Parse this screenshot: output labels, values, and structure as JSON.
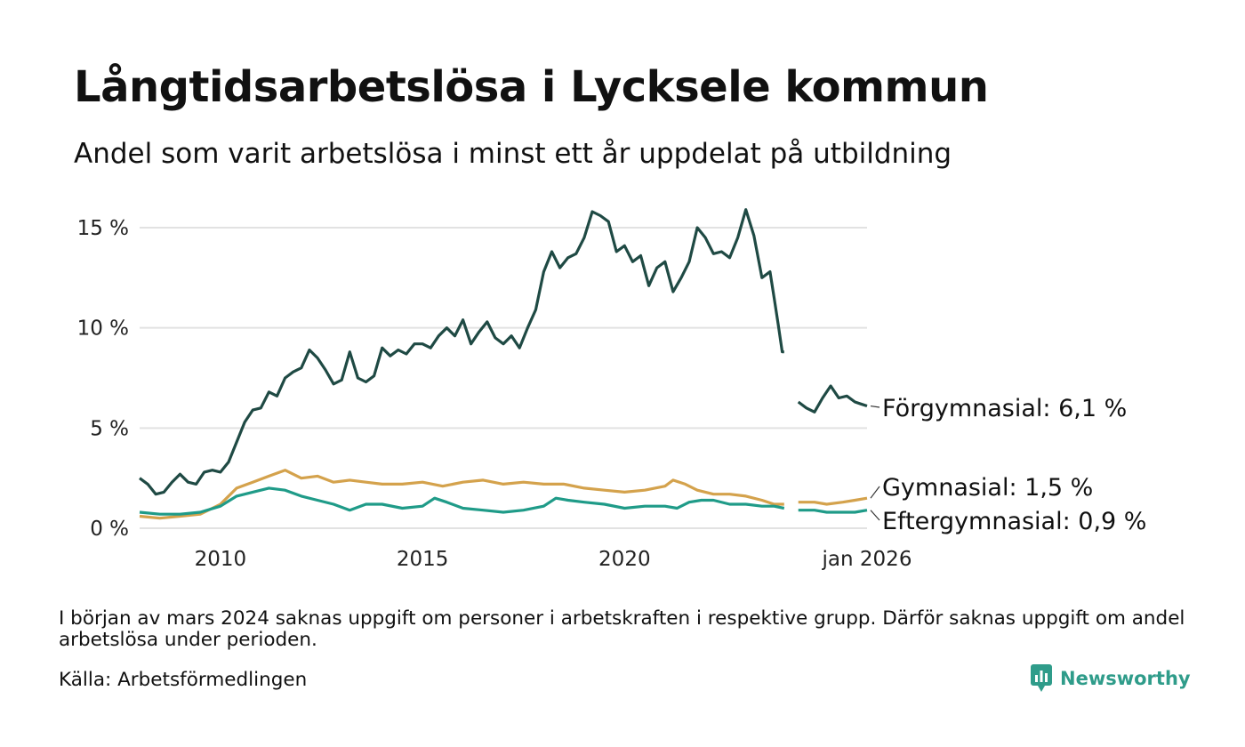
{
  "title": "Långtidsarbetslösa i Lycksele kommun",
  "subtitle": "Andel som varit arbetslösa i minst ett år uppdelat på utbildning",
  "footnote": "I början av mars 2024 saknas uppgift om personer i arbetskraften i respektive grupp. Därför saknas uppgift om andel arbetslösa under perioden.",
  "source": "Källa: Arbetsförmedlingen",
  "brand": "Newsworthy",
  "colors": {
    "forgymnasial": "#1f4a44",
    "gymnasial": "#d4a24c",
    "eftergymnasial": "#1f9b88",
    "grid": "#e2e2e2",
    "brand": "#2f9c8a"
  },
  "chart_data": {
    "type": "line",
    "x_range": [
      2008.0,
      2026.0
    ],
    "ylim": [
      0,
      16
    ],
    "y_ticks": [
      0,
      5,
      10,
      15
    ],
    "y_tick_labels": [
      "0 %",
      "5 %",
      "10 %",
      "15 %"
    ],
    "x_ticks": [
      2010,
      2015,
      2020,
      2026
    ],
    "x_tick_labels": [
      "2010",
      "2015",
      "2020",
      "jan 2026"
    ],
    "gap": [
      2023.95,
      2024.3
    ],
    "series": [
      {
        "name": "Förgymnasial",
        "end_label": "Förgymnasial: 6,1 %",
        "color_key": "forgymnasial",
        "points": [
          [
            2008.0,
            2.5
          ],
          [
            2008.2,
            2.2
          ],
          [
            2008.4,
            1.7
          ],
          [
            2008.6,
            1.8
          ],
          [
            2008.8,
            2.3
          ],
          [
            2009.0,
            2.7
          ],
          [
            2009.2,
            2.3
          ],
          [
            2009.4,
            2.2
          ],
          [
            2009.6,
            2.8
          ],
          [
            2009.8,
            2.9
          ],
          [
            2010.0,
            2.8
          ],
          [
            2010.2,
            3.3
          ],
          [
            2010.4,
            4.3
          ],
          [
            2010.6,
            5.3
          ],
          [
            2010.8,
            5.9
          ],
          [
            2011.0,
            6.0
          ],
          [
            2011.2,
            6.8
          ],
          [
            2011.4,
            6.6
          ],
          [
            2011.6,
            7.5
          ],
          [
            2011.8,
            7.8
          ],
          [
            2012.0,
            8.0
          ],
          [
            2012.2,
            8.9
          ],
          [
            2012.4,
            8.5
          ],
          [
            2012.6,
            7.9
          ],
          [
            2012.8,
            7.2
          ],
          [
            2013.0,
            7.4
          ],
          [
            2013.2,
            8.8
          ],
          [
            2013.4,
            7.5
          ],
          [
            2013.6,
            7.3
          ],
          [
            2013.8,
            7.6
          ],
          [
            2014.0,
            9.0
          ],
          [
            2014.2,
            8.6
          ],
          [
            2014.4,
            8.9
          ],
          [
            2014.6,
            8.7
          ],
          [
            2014.8,
            9.2
          ],
          [
            2015.0,
            9.2
          ],
          [
            2015.2,
            9.0
          ],
          [
            2015.4,
            9.6
          ],
          [
            2015.6,
            10.0
          ],
          [
            2015.8,
            9.6
          ],
          [
            2016.0,
            10.4
          ],
          [
            2016.2,
            9.2
          ],
          [
            2016.4,
            9.8
          ],
          [
            2016.6,
            10.3
          ],
          [
            2016.8,
            9.5
          ],
          [
            2017.0,
            9.2
          ],
          [
            2017.2,
            9.6
          ],
          [
            2017.4,
            9.0
          ],
          [
            2017.6,
            10.0
          ],
          [
            2017.8,
            10.9
          ],
          [
            2018.0,
            12.8
          ],
          [
            2018.2,
            13.8
          ],
          [
            2018.4,
            13.0
          ],
          [
            2018.6,
            13.5
          ],
          [
            2018.8,
            13.7
          ],
          [
            2019.0,
            14.5
          ],
          [
            2019.2,
            15.8
          ],
          [
            2019.4,
            15.6
          ],
          [
            2019.6,
            15.3
          ],
          [
            2019.8,
            13.8
          ],
          [
            2020.0,
            14.1
          ],
          [
            2020.2,
            13.3
          ],
          [
            2020.4,
            13.6
          ],
          [
            2020.6,
            12.1
          ],
          [
            2020.8,
            13.0
          ],
          [
            2021.0,
            13.3
          ],
          [
            2021.2,
            11.8
          ],
          [
            2021.4,
            12.5
          ],
          [
            2021.6,
            13.3
          ],
          [
            2021.8,
            15.0
          ],
          [
            2022.0,
            14.5
          ],
          [
            2022.2,
            13.7
          ],
          [
            2022.4,
            13.8
          ],
          [
            2022.6,
            13.5
          ],
          [
            2022.8,
            14.5
          ],
          [
            2023.0,
            15.9
          ],
          [
            2023.2,
            14.6
          ],
          [
            2023.4,
            12.5
          ],
          [
            2023.6,
            12.8
          ],
          [
            2023.7,
            11.5
          ],
          [
            2023.8,
            10.2
          ],
          [
            2023.9,
            8.8
          ],
          [
            2023.95,
            8.8
          ],
          [
            2024.3,
            6.3
          ],
          [
            2024.5,
            6.0
          ],
          [
            2024.7,
            5.8
          ],
          [
            2024.9,
            6.5
          ],
          [
            2025.1,
            7.1
          ],
          [
            2025.3,
            6.5
          ],
          [
            2025.5,
            6.6
          ],
          [
            2025.7,
            6.3
          ],
          [
            2025.85,
            6.2
          ],
          [
            2026.0,
            6.1
          ]
        ]
      },
      {
        "name": "Gymnasial",
        "end_label": "Gymnasial: 1,5 %",
        "color_key": "gymnasial",
        "points": [
          [
            2008.0,
            0.6
          ],
          [
            2008.5,
            0.5
          ],
          [
            2009.0,
            0.6
          ],
          [
            2009.5,
            0.7
          ],
          [
            2010.0,
            1.2
          ],
          [
            2010.4,
            2.0
          ],
          [
            2010.8,
            2.3
          ],
          [
            2011.2,
            2.6
          ],
          [
            2011.6,
            2.9
          ],
          [
            2012.0,
            2.5
          ],
          [
            2012.4,
            2.6
          ],
          [
            2012.8,
            2.3
          ],
          [
            2013.2,
            2.4
          ],
          [
            2013.6,
            2.3
          ],
          [
            2014.0,
            2.2
          ],
          [
            2014.5,
            2.2
          ],
          [
            2015.0,
            2.3
          ],
          [
            2015.5,
            2.1
          ],
          [
            2016.0,
            2.3
          ],
          [
            2016.5,
            2.4
          ],
          [
            2017.0,
            2.2
          ],
          [
            2017.5,
            2.3
          ],
          [
            2018.0,
            2.2
          ],
          [
            2018.5,
            2.2
          ],
          [
            2019.0,
            2.0
          ],
          [
            2019.5,
            1.9
          ],
          [
            2020.0,
            1.8
          ],
          [
            2020.5,
            1.9
          ],
          [
            2021.0,
            2.1
          ],
          [
            2021.2,
            2.4
          ],
          [
            2021.5,
            2.2
          ],
          [
            2021.8,
            1.9
          ],
          [
            2022.2,
            1.7
          ],
          [
            2022.6,
            1.7
          ],
          [
            2023.0,
            1.6
          ],
          [
            2023.4,
            1.4
          ],
          [
            2023.7,
            1.2
          ],
          [
            2023.95,
            1.2
          ],
          [
            2024.3,
            1.3
          ],
          [
            2024.7,
            1.3
          ],
          [
            2025.0,
            1.2
          ],
          [
            2025.4,
            1.3
          ],
          [
            2025.7,
            1.4
          ],
          [
            2026.0,
            1.5
          ]
        ]
      },
      {
        "name": "Eftergymnasial",
        "end_label": "Eftergymnasial: 0,9 %",
        "color_key": "eftergymnasial",
        "points": [
          [
            2008.0,
            0.8
          ],
          [
            2008.5,
            0.7
          ],
          [
            2009.0,
            0.7
          ],
          [
            2009.5,
            0.8
          ],
          [
            2010.0,
            1.1
          ],
          [
            2010.4,
            1.6
          ],
          [
            2010.8,
            1.8
          ],
          [
            2011.2,
            2.0
          ],
          [
            2011.6,
            1.9
          ],
          [
            2012.0,
            1.6
          ],
          [
            2012.4,
            1.4
          ],
          [
            2012.8,
            1.2
          ],
          [
            2013.2,
            0.9
          ],
          [
            2013.6,
            1.2
          ],
          [
            2014.0,
            1.2
          ],
          [
            2014.5,
            1.0
          ],
          [
            2015.0,
            1.1
          ],
          [
            2015.3,
            1.5
          ],
          [
            2015.6,
            1.3
          ],
          [
            2016.0,
            1.0
          ],
          [
            2016.5,
            0.9
          ],
          [
            2017.0,
            0.8
          ],
          [
            2017.5,
            0.9
          ],
          [
            2018.0,
            1.1
          ],
          [
            2018.3,
            1.5
          ],
          [
            2018.6,
            1.4
          ],
          [
            2019.0,
            1.3
          ],
          [
            2019.5,
            1.2
          ],
          [
            2020.0,
            1.0
          ],
          [
            2020.5,
            1.1
          ],
          [
            2021.0,
            1.1
          ],
          [
            2021.3,
            1.0
          ],
          [
            2021.6,
            1.3
          ],
          [
            2021.9,
            1.4
          ],
          [
            2022.2,
            1.4
          ],
          [
            2022.6,
            1.2
          ],
          [
            2023.0,
            1.2
          ],
          [
            2023.4,
            1.1
          ],
          [
            2023.7,
            1.1
          ],
          [
            2023.95,
            1.0
          ],
          [
            2024.3,
            0.9
          ],
          [
            2024.7,
            0.9
          ],
          [
            2025.0,
            0.8
          ],
          [
            2025.4,
            0.8
          ],
          [
            2025.7,
            0.8
          ],
          [
            2026.0,
            0.9
          ]
        ]
      }
    ]
  }
}
